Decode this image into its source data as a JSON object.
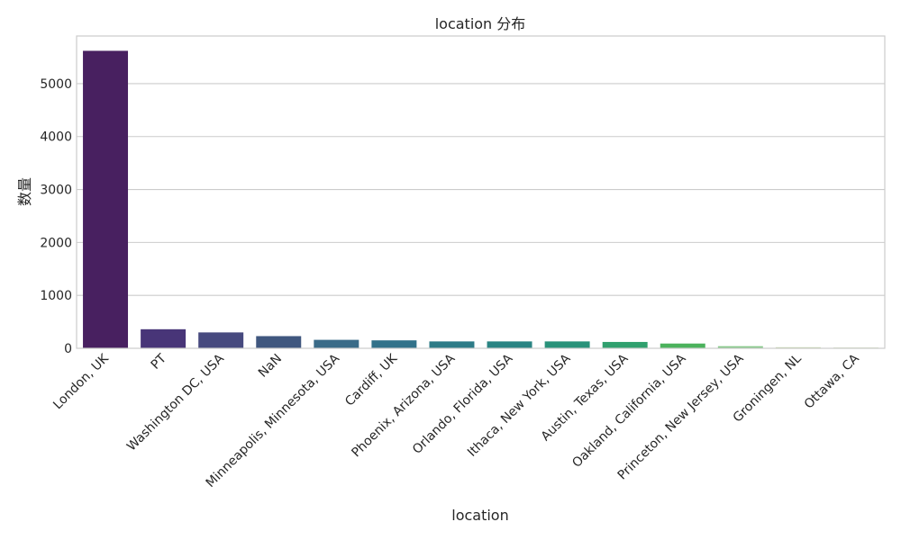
{
  "chart_data": {
    "type": "bar",
    "title": "location 分布",
    "xlabel": "location",
    "ylabel": "数量",
    "categories": [
      "London, UK",
      "PT",
      "Washington DC, USA",
      "NaN",
      "Minneapolis, Minnesota, USA",
      "Cardiff, UK",
      "Phoenix, Arizona, USA",
      "Orlando, Florida, USA",
      "Ithaca, New York, USA",
      "Austin, Texas, USA",
      "Oakland, California, USA",
      "Princeton, New Jersey, USA",
      "Groningen, NL",
      "Ottawa, CA"
    ],
    "values": [
      5620,
      360,
      300,
      230,
      160,
      150,
      130,
      130,
      130,
      120,
      90,
      40,
      20,
      15
    ],
    "colors": [
      "#482060",
      "#483578",
      "#474a7f",
      "#40577f",
      "#3a6b88",
      "#32728a",
      "#2d7b87",
      "#2a8483",
      "#29927a",
      "#30a06e",
      "#4bb25c",
      "#88c98a",
      "#c1d7a6",
      "#cfdcb6"
    ],
    "ylim": [
      0,
      5900
    ],
    "yticks": [
      0,
      1000,
      2000,
      3000,
      4000,
      5000
    ],
    "grid": "horizontal",
    "style": {
      "grid_color": "#cccccc",
      "spine_color": "#cccccc",
      "text_color": "#262626"
    }
  }
}
